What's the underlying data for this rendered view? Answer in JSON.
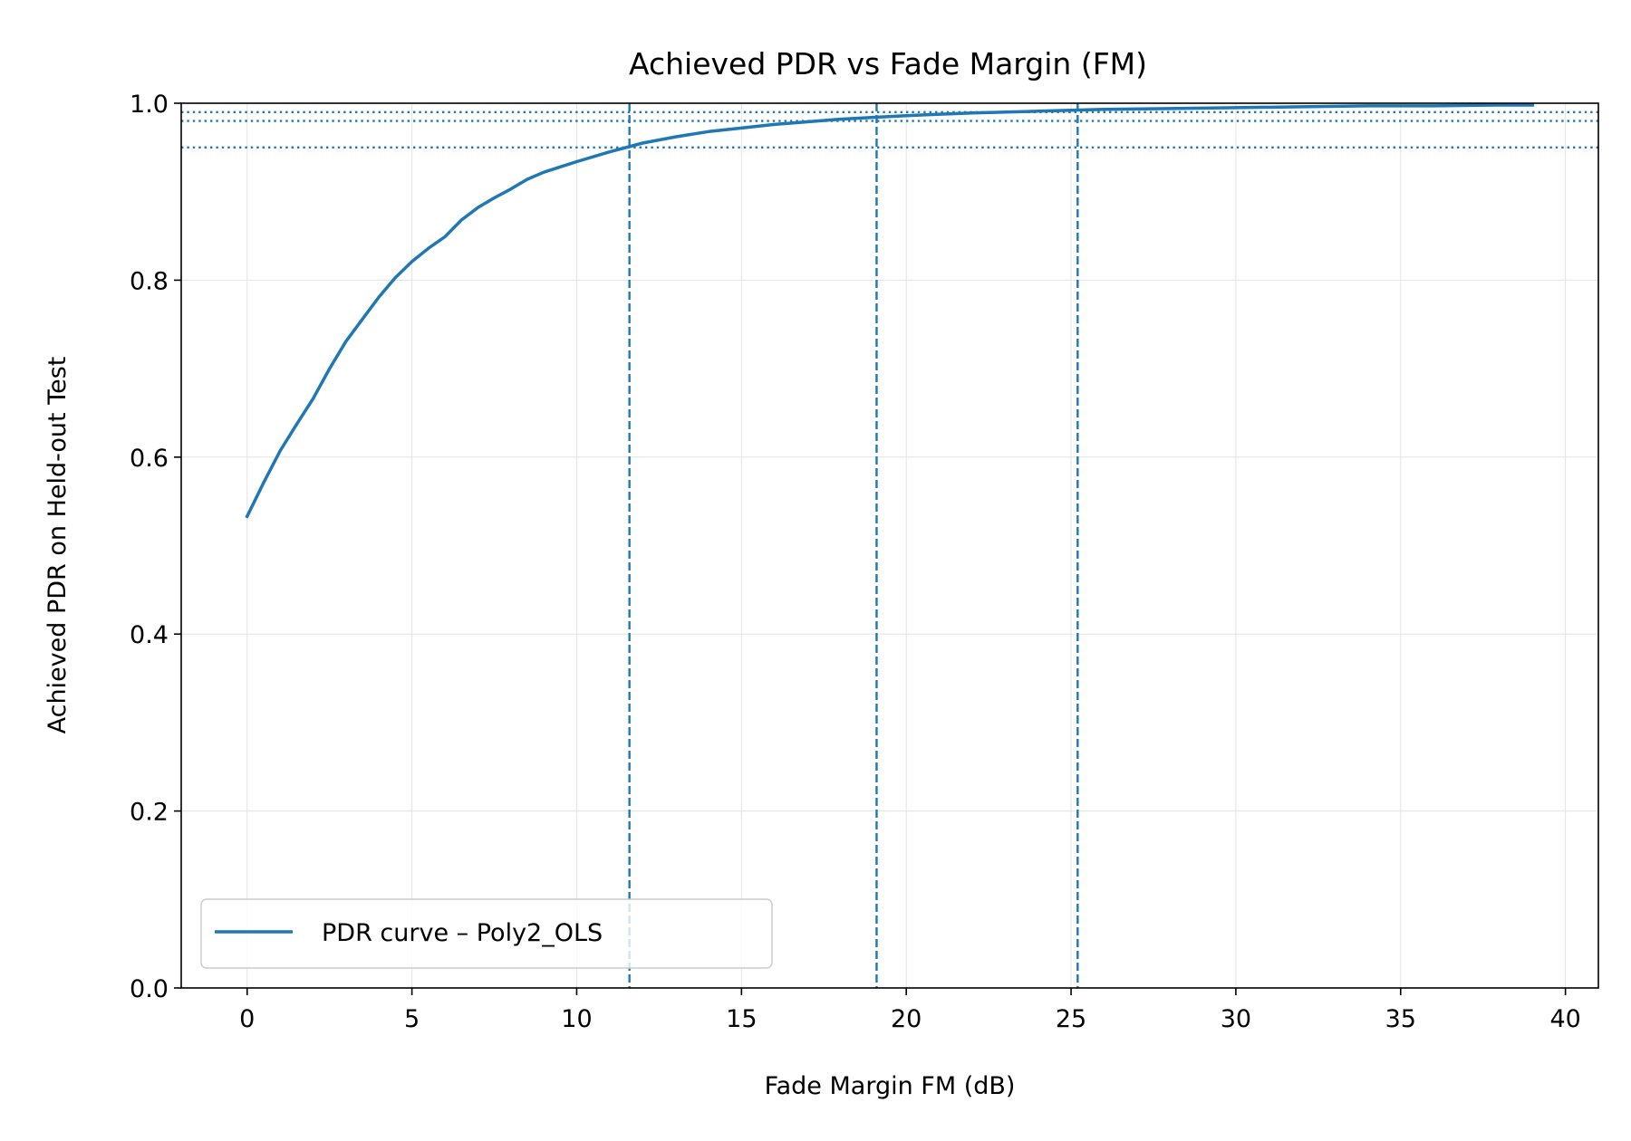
{
  "chart_data": {
    "type": "line",
    "title": "Achieved PDR vs Fade Margin (FM)",
    "xlabel": "Fade Margin FM (dB)",
    "ylabel": "Achieved PDR on Held-out Test",
    "xlim": [
      -2,
      41
    ],
    "ylim": [
      0.0,
      1.0
    ],
    "xticks": [
      0,
      5,
      10,
      15,
      20,
      25,
      30,
      35,
      40
    ],
    "yticks": [
      0.0,
      0.2,
      0.4,
      0.6,
      0.8,
      1.0
    ],
    "xtick_labels": [
      "0",
      "5",
      "10",
      "15",
      "20",
      "25",
      "30",
      "35",
      "40"
    ],
    "ytick_labels": [
      "0.0",
      "0.2",
      "0.4",
      "0.6",
      "0.8",
      "1.0"
    ],
    "grid": true,
    "legend_position": "lower-left",
    "series": [
      {
        "name": "PDR curve – Poly2_OLS",
        "color": "#1f77b4",
        "x": [
          0,
          0.5,
          1,
          1.5,
          2,
          2.5,
          3,
          3.5,
          4,
          4.5,
          5,
          5.5,
          6,
          6.5,
          7,
          7.5,
          8,
          8.5,
          9,
          9.5,
          10,
          11,
          12,
          13,
          14,
          15,
          16,
          17,
          18,
          19,
          20,
          22,
          24,
          26,
          28,
          30,
          32,
          34,
          36,
          38,
          39
        ],
        "y": [
          0.533,
          0.571,
          0.607,
          0.637,
          0.666,
          0.7,
          0.731,
          0.756,
          0.781,
          0.803,
          0.821,
          0.836,
          0.849,
          0.868,
          0.882,
          0.893,
          0.903,
          0.914,
          0.922,
          0.928,
          0.934,
          0.945,
          0.955,
          0.962,
          0.968,
          0.972,
          0.976,
          0.979,
          0.982,
          0.984,
          0.986,
          0.989,
          0.991,
          0.993,
          0.994,
          0.995,
          0.996,
          0.997,
          0.997,
          0.998,
          0.998
        ]
      }
    ],
    "vertical_lines": [
      {
        "x": 11.6,
        "style": "dashed",
        "color": "#1f77b4"
      },
      {
        "x": 19.1,
        "style": "dashed",
        "color": "#1f77b4"
      },
      {
        "x": 25.2,
        "style": "dashed",
        "color": "#1f77b4"
      }
    ],
    "horizontal_lines": [
      {
        "y": 0.95,
        "style": "dotted",
        "color": "#1f77b4"
      },
      {
        "y": 0.98,
        "style": "dotted",
        "color": "#1f77b4"
      },
      {
        "y": 0.99,
        "style": "dotted",
        "color": "#1f77b4"
      }
    ]
  }
}
